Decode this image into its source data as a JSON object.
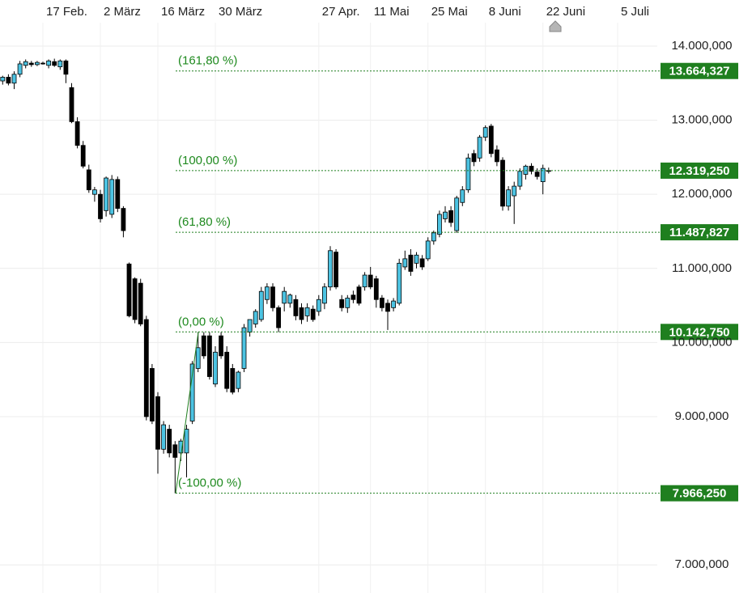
{
  "chart_data": {
    "type": "candlestick",
    "categories": [
      null,
      null,
      null,
      null,
      null,
      null,
      null,
      "17 Feb.",
      null,
      null,
      null,
      null,
      null,
      null,
      null,
      null,
      null,
      "2 März",
      null,
      null,
      null,
      null,
      null,
      null,
      null,
      null,
      null,
      "16 März",
      null,
      null,
      null,
      null,
      null,
      null,
      null,
      null,
      null,
      "30 März",
      null,
      null,
      null,
      null,
      null,
      null,
      null,
      null,
      null,
      null,
      null,
      null,
      null,
      null,
      null,
      null,
      null,
      "27 Apr.",
      null,
      null,
      null,
      null,
      null,
      null,
      null,
      null,
      "11 Mai",
      null,
      null,
      null,
      null,
      null,
      null,
      null,
      null,
      null,
      "25 Mai",
      null,
      null,
      null,
      null,
      null,
      null,
      null,
      null,
      null,
      "8 Juni",
      null,
      null,
      null,
      null,
      null,
      null,
      null,
      null,
      null,
      "22 Juni",
      null,
      null,
      null,
      null,
      null,
      null,
      null,
      null,
      null,
      null,
      null,
      null,
      "5 Juli"
    ],
    "open": [
      13530000,
      13580000,
      13500000,
      13620000,
      13740000,
      13770000,
      13750000,
      13770000,
      13740000,
      13790000,
      13720000,
      13800000,
      13440000,
      12980000,
      12660000,
      12330000,
      12000000,
      12000000,
      11780000,
      11730000,
      12200000,
      11810000,
      11060000,
      10860000,
      10800000,
      10310000,
      9650000,
      9270000,
      8560000,
      8830000,
      8620000,
      8510000,
      8510000,
      8940000,
      9650000,
      10090000,
      10090000,
      9440000,
      10090000,
      9870000,
      9650000,
      9380000,
      9650000,
      10140000,
      10250000,
      10310000,
      10580000,
      10750000,
      10470000,
      10530000,
      10530000,
      10580000,
      10470000,
      10360000,
      10450000,
      10420000,
      10530000,
      10750000,
      11220000,
      10580000,
      10470000,
      10640000,
      10750000,
      10750000,
      10910000,
      10860000,
      10600000,
      10530000,
      10470000,
      10530000,
      11020000,
      11180000,
      11070000,
      11130000,
      11130000,
      11370000,
      11460000,
      11670000,
      11780000,
      11510000,
      11890000,
      12060000,
      12550000,
      12490000,
      12770000,
      12920000,
      12600000,
      12460000,
      11840000,
      11980000,
      12110000,
      12270000,
      12380000,
      12300000,
      12170000,
      12320000,
      null,
      null,
      null,
      null,
      null,
      null,
      null,
      null,
      null,
      null,
      null,
      null
    ],
    "high": [
      13600000,
      13620000,
      13660000,
      13800000,
      13820000,
      13800000,
      13800000,
      13790000,
      13820000,
      13830000,
      13820000,
      13820000,
      13500000,
      13040000,
      12720000,
      12400000,
      12100000,
      12060000,
      12240000,
      12260000,
      12240000,
      11840000,
      11080000,
      10880000,
      10860000,
      10360000,
      9710000,
      9330000,
      8940000,
      8890000,
      8670000,
      8700000,
      8890000,
      9750000,
      10142750,
      10140000,
      10140000,
      9950000,
      10140000,
      9950000,
      9710000,
      9620000,
      10250000,
      10310000,
      10450000,
      10750000,
      10800000,
      10800000,
      10500000,
      10750000,
      10660000,
      10640000,
      10530000,
      10530000,
      10500000,
      10640000,
      10800000,
      11300000,
      11260000,
      10640000,
      10640000,
      10700000,
      10780000,
      10950000,
      11020000,
      10900000,
      10640000,
      10580000,
      10600000,
      11130000,
      11240000,
      11260000,
      11220000,
      11180000,
      11420000,
      11510000,
      11780000,
      11840000,
      11840000,
      11980000,
      12110000,
      12550000,
      12600000,
      12800000,
      12930000,
      12950000,
      12660000,
      12500000,
      12110000,
      12170000,
      12350000,
      12400000,
      12420000,
      12350000,
      12400000,
      12360000,
      null,
      null,
      null,
      null,
      null,
      null,
      null,
      null,
      null,
      null,
      null,
      null
    ],
    "low": [
      13480000,
      13470000,
      13420000,
      13580000,
      13700000,
      13720000,
      13730000,
      13750000,
      13700000,
      13720000,
      13680000,
      13500000,
      12960000,
      12620000,
      12350000,
      12020000,
      11900000,
      11620000,
      11700000,
      11680000,
      11760000,
      11420000,
      10340000,
      10260000,
      10220000,
      8950000,
      8900000,
      8230000,
      8500000,
      8450000,
      7966250,
      8400000,
      8180000,
      8900000,
      9600000,
      9780000,
      9500000,
      9400000,
      9780000,
      9330000,
      9300000,
      9330000,
      9600000,
      10080000,
      10200000,
      10280000,
      10520000,
      10420000,
      10140000,
      10420000,
      10470000,
      10300000,
      10250000,
      10280000,
      10280000,
      10360000,
      10450000,
      10700000,
      10720000,
      10420000,
      10400000,
      10530000,
      10500000,
      10700000,
      10720000,
      10470000,
      10420000,
      10170000,
      10420000,
      10500000,
      10980000,
      10900000,
      11000000,
      10980000,
      11100000,
      11320000,
      11420000,
      11620000,
      11560000,
      11480000,
      11840000,
      12020000,
      12380000,
      12440000,
      12720000,
      12500000,
      12380000,
      11780000,
      11780000,
      11600000,
      12060000,
      12200000,
      12270000,
      12200000,
      12000000,
      12280000,
      null,
      null,
      null,
      null,
      null,
      null,
      null,
      null,
      null,
      null,
      null,
      null
    ],
    "close": [
      13580000,
      13500000,
      13620000,
      13760000,
      13790000,
      13750000,
      13780000,
      13770000,
      13800000,
      13740000,
      13800000,
      13620000,
      12980000,
      12660000,
      12380000,
      12060000,
      12060000,
      11670000,
      12220000,
      12200000,
      11810000,
      11510000,
      10360000,
      10310000,
      10250000,
      9000000,
      8940000,
      8560000,
      8890000,
      8510000,
      8450000,
      8670000,
      8830000,
      9710000,
      9930000,
      9820000,
      9540000,
      9870000,
      9820000,
      9380000,
      9330000,
      9600000,
      10200000,
      10310000,
      10420000,
      10690000,
      10750000,
      10470000,
      10200000,
      10690000,
      10640000,
      10360000,
      10310000,
      10470000,
      10310000,
      10580000,
      10750000,
      11240000,
      10750000,
      10470000,
      10600000,
      10580000,
      10530000,
      10910000,
      10750000,
      10580000,
      10470000,
      10420000,
      10560000,
      11070000,
      11130000,
      10960000,
      11180000,
      11020000,
      11370000,
      11480000,
      11730000,
      11760000,
      11620000,
      11950000,
      12060000,
      12490000,
      12440000,
      12770000,
      12900000,
      12550000,
      12440000,
      11840000,
      12060000,
      12110000,
      12310000,
      12380000,
      12310000,
      12240000,
      12350000,
      12320000,
      null,
      null,
      null,
      null,
      null,
      null,
      null,
      null,
      null,
      null,
      null,
      null
    ],
    "up_color": "#4cc3e2",
    "down_color": "#000000",
    "ylim": [
      6620000,
      14622000
    ],
    "yticks": [
      {
        "value": 7000000,
        "label": "7.000,000"
      },
      {
        "value": 9000000,
        "label": "9.000,000"
      },
      {
        "value": 10000000,
        "label": "10.000,000"
      },
      {
        "value": 11000000,
        "label": "11.000,000"
      },
      {
        "value": 12000000,
        "label": "12.000,000"
      },
      {
        "value": 13000000,
        "label": "13.000,000"
      },
      {
        "value": 14000000,
        "label": "14.000,000"
      }
    ],
    "grid": true,
    "fibonacci": {
      "levels": [
        "(161,80 %)",
        "(100,00 %)",
        "(61,80 %)",
        "(0,00 %)",
        "(-100,00 %)"
      ],
      "values": [
        13664327,
        12319250,
        11487827,
        10142750,
        7966250
      ],
      "value_labels": [
        "13.664,327",
        "12.319,250",
        "11.487,827",
        "10.142,750",
        "7.966,250"
      ],
      "color": "#1f7f1f"
    }
  }
}
